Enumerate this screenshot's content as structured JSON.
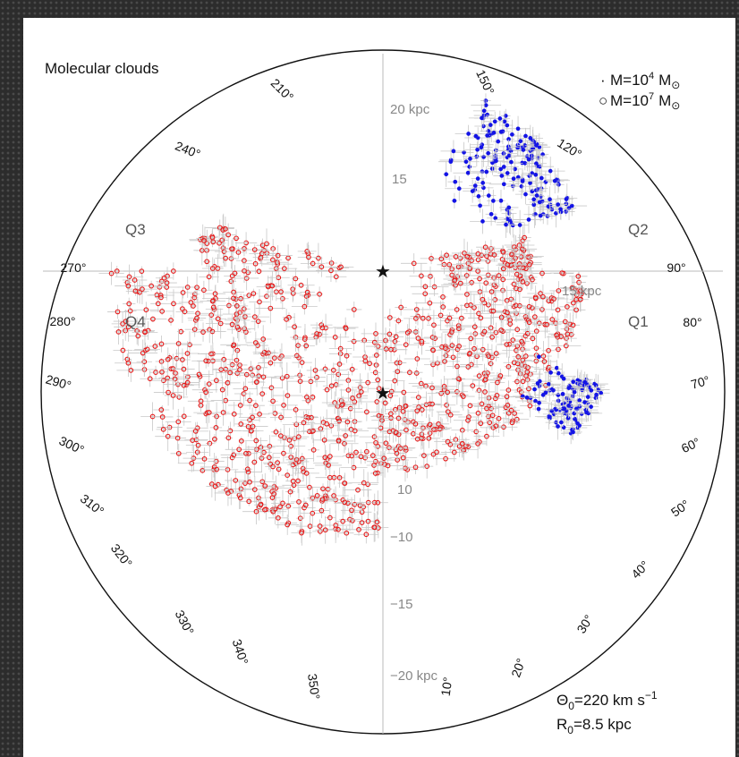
{
  "chart_data": {
    "type": "scatter",
    "title": "Molecular clouds",
    "projection": "polar (galactocentric face-on map)",
    "legend": {
      "placement": "top-right",
      "entries": [
        {
          "symbol": "·",
          "label": "M=10",
          "sup": "4",
          "unit": "M",
          "sub": "⊙"
        },
        {
          "symbol": "○",
          "label": "M=10",
          "sup": "7",
          "unit": "M",
          "sub": "⊙"
        }
      ]
    },
    "parameters": [
      {
        "label": "Θ",
        "sub": "0",
        "text": "=220 km s",
        "sup": "−1"
      },
      {
        "label": "R",
        "sub": "0",
        "text": "=8.5 kpc",
        "sup": ""
      }
    ],
    "quadrants": [
      "Q1",
      "Q2",
      "Q3",
      "Q4"
    ],
    "longitude_ticks": [
      "10°",
      "20°",
      "30°",
      "40°",
      "50°",
      "60°",
      "70°",
      "80°",
      "90°",
      "120°",
      "150°",
      "210°",
      "240°",
      "270°",
      "280°",
      "290°",
      "300°",
      "310°",
      "320°",
      "330°",
      "340°",
      "350°"
    ],
    "radial_ticks": [
      "20 kpc",
      "15",
      "15 kpc",
      "10",
      "−10",
      "−15",
      "−20 kpc"
    ],
    "markers": [
      {
        "name": "Sun",
        "symbol": "★"
      },
      {
        "name": "Galactic center",
        "symbol": "★"
      }
    ],
    "series": [
      {
        "color": "#e61a1a",
        "regions": [
          {
            "l_range": [
              270,
              360
            ],
            "d_range": [
              3,
              22
            ],
            "count": 520
          },
          {
            "l_range": [
              0,
              90
            ],
            "d_range": [
              3,
              16
            ],
            "count": 380
          },
          {
            "l_range": [
              90,
              105
            ],
            "d_range": [
              2,
              12
            ],
            "count": 60
          },
          {
            "l_range": [
              255,
              270
            ],
            "d_range": [
              2,
              15
            ],
            "count": 60
          }
        ]
      },
      {
        "color": "#1414e6",
        "regions": [
          {
            "l_range": [
              108,
              150
            ],
            "d_range": [
              8,
              16
            ],
            "count": 170
          },
          {
            "l_range": [
              48,
              62
            ],
            "d_range": [
              14,
              20
            ],
            "count": 100
          }
        ]
      }
    ],
    "grid": false
  }
}
